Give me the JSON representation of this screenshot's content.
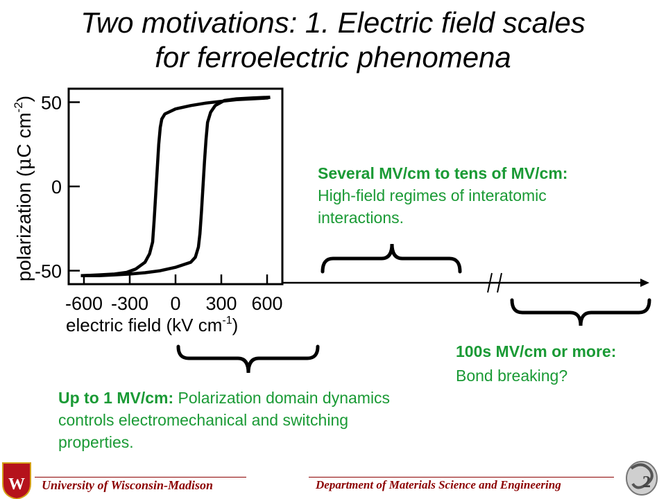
{
  "slide": {
    "title_line1": "Two motivations: 1. Electric field scales",
    "title_line2": "for ferroelectric phenomena"
  },
  "annotations": {
    "high_field_bold": "Several MV/cm to tens of MV/cm:",
    "high_field_text": " High-field regimes of interatomic interactions.",
    "low_field_bold": "Up to 1 MV/cm:",
    "low_field_text": " Polarization domain dynamics controls electromechanical and switching properties.",
    "extreme_field_bold": "100s MV/cm or more:",
    "extreme_field_text": " Bond breaking?"
  },
  "footer": {
    "university": "University of Wisconsin-Madison",
    "department": "Department of Materials Science and Engineering"
  },
  "chart_data": {
    "type": "line",
    "title": "",
    "xlabel": "electric field (kV cm⁻¹)",
    "ylabel": "polarization (μC cm⁻²)",
    "xlim": [
      -700,
      700
    ],
    "ylim": [
      -58,
      58
    ],
    "x_ticks": [
      -600,
      -300,
      0,
      300,
      600
    ],
    "x_tick_labels": [
      "-600",
      "-300",
      "0",
      "300",
      "600"
    ],
    "y_ticks": [
      50,
      0,
      -50
    ],
    "y_tick_labels": [
      "50",
      "0",
      "-50"
    ],
    "grid": false,
    "series": [
      {
        "x": [
          -620,
          -500,
          -400,
          -320,
          -260,
          -200,
          -170,
          -150,
          -140,
          -130,
          -120,
          -110,
          -100,
          -90,
          -70,
          0,
          100,
          200,
          300,
          400,
          500,
          600,
          620
        ],
        "y": [
          -53,
          -52.5,
          -52,
          -51,
          -49,
          -45,
          -40,
          -33,
          -20,
          -5,
          10,
          25,
          35,
          40,
          43,
          46,
          48,
          49.5,
          50.5,
          51.5,
          52,
          52.5,
          53
        ]
      },
      {
        "x": [
          620,
          500,
          400,
          320,
          260,
          230,
          210,
          200,
          190,
          180,
          170,
          160,
          150,
          130,
          100,
          0,
          -100,
          -200,
          -300,
          -400,
          -500,
          -620
        ],
        "y": [
          53,
          52.5,
          52,
          51,
          48,
          44,
          38,
          28,
          15,
          0,
          -15,
          -28,
          -36,
          -42,
          -45,
          -48,
          -50,
          -51.2,
          -52,
          -52.5,
          -53,
          -53
        ]
      }
    ]
  }
}
